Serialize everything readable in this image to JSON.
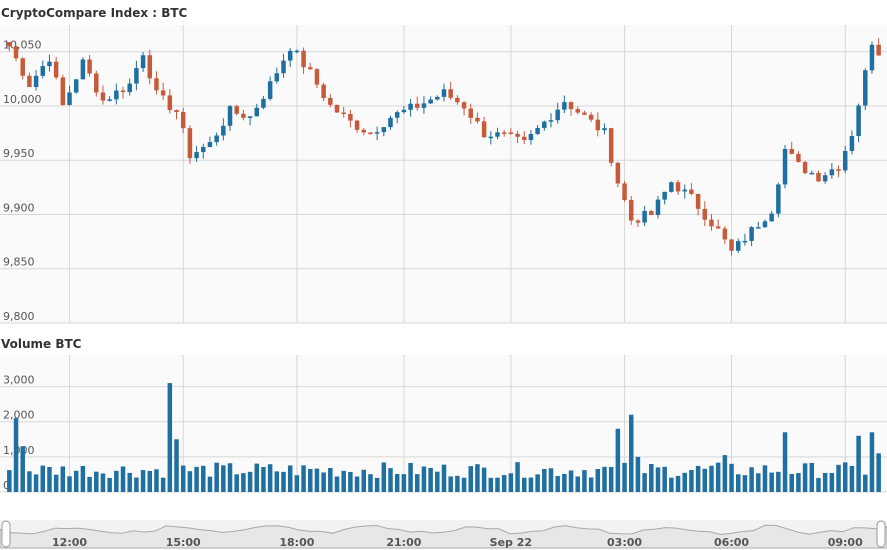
{
  "chart_data": [
    {
      "type": "candlestick",
      "title": "CryptoCompare Index : BTC",
      "y_ticks": [
        "10,050",
        "10,000",
        "9,950",
        "9,900",
        "9,850",
        "9,800"
      ],
      "y_tick_values": [
        10050,
        10000,
        9950,
        9900,
        9850,
        9800
      ],
      "ylim": [
        9800,
        10070
      ],
      "grid": true,
      "up_color": "#1f6fa0",
      "down_color": "#c85a3c",
      "key_points": [
        {
          "t": 0,
          "price": 10055
        },
        {
          "t": 3,
          "price": 10020
        },
        {
          "t": 6,
          "price": 10045
        },
        {
          "t": 8,
          "price": 10000
        },
        {
          "t": 11,
          "price": 10040
        },
        {
          "t": 14,
          "price": 10005
        },
        {
          "t": 18,
          "price": 10020
        },
        {
          "t": 20,
          "price": 10050
        },
        {
          "t": 22,
          "price": 10010
        },
        {
          "t": 25,
          "price": 9995
        },
        {
          "t": 27,
          "price": 9955
        },
        {
          "t": 30,
          "price": 9965
        },
        {
          "t": 33,
          "price": 9995
        },
        {
          "t": 36,
          "price": 9990
        },
        {
          "t": 39,
          "price": 10020
        },
        {
          "t": 42,
          "price": 10055
        },
        {
          "t": 45,
          "price": 10030
        },
        {
          "t": 48,
          "price": 10000
        },
        {
          "t": 51,
          "price": 9985
        },
        {
          "t": 54,
          "price": 9975
        },
        {
          "t": 57,
          "price": 9990
        },
        {
          "t": 61,
          "price": 10000
        },
        {
          "t": 65,
          "price": 10012
        },
        {
          "t": 68,
          "price": 10000
        },
        {
          "t": 71,
          "price": 9975
        },
        {
          "t": 74,
          "price": 9972
        },
        {
          "t": 77,
          "price": 9965
        },
        {
          "t": 80,
          "price": 9985
        },
        {
          "t": 83,
          "price": 10005
        },
        {
          "t": 86,
          "price": 9990
        },
        {
          "t": 89,
          "price": 9975
        },
        {
          "t": 91,
          "price": 9930
        },
        {
          "t": 93,
          "price": 9895
        },
        {
          "t": 96,
          "price": 9900
        },
        {
          "t": 99,
          "price": 9930
        },
        {
          "t": 102,
          "price": 9915
        },
        {
          "t": 104,
          "price": 9900
        },
        {
          "t": 106,
          "price": 9885
        },
        {
          "t": 108,
          "price": 9865
        },
        {
          "t": 111,
          "price": 9885
        },
        {
          "t": 114,
          "price": 9905
        },
        {
          "t": 116,
          "price": 9960
        },
        {
          "t": 118,
          "price": 9945
        },
        {
          "t": 121,
          "price": 9935
        },
        {
          "t": 124,
          "price": 9945
        },
        {
          "t": 126,
          "price": 9975
        },
        {
          "t": 128,
          "price": 10030
        },
        {
          "t": 129,
          "price": 10060
        },
        {
          "t": 130,
          "price": 10050
        }
      ],
      "candle_count": 131
    },
    {
      "type": "bar",
      "title": "Volume BTC",
      "y_ticks": [
        "3,000",
        "2,000",
        "1,000",
        "0"
      ],
      "y_tick_values": [
        3000,
        2000,
        1000,
        0
      ],
      "ylim": [
        0,
        3900
      ],
      "grid": true,
      "bar_color": "#1f6fa0",
      "base_volume": 400,
      "spikes": [
        {
          "t": 1,
          "value": 2100
        },
        {
          "t": 2,
          "value": 1300
        },
        {
          "t": 24,
          "value": 3100
        },
        {
          "t": 25,
          "value": 1500
        },
        {
          "t": 91,
          "value": 1800
        },
        {
          "t": 93,
          "value": 2200
        },
        {
          "t": 94,
          "value": 1000
        },
        {
          "t": 107,
          "value": 1050
        },
        {
          "t": 116,
          "value": 1700
        },
        {
          "t": 127,
          "value": 1600
        },
        {
          "t": 129,
          "value": 1700
        },
        {
          "t": 130,
          "value": 1100
        }
      ]
    }
  ],
  "x_axis": {
    "labels": [
      "12:00",
      "15:00",
      "18:00",
      "21:00",
      "Sep 22",
      "03:00",
      "06:00",
      "09:00"
    ],
    "label_t": [
      9,
      26,
      43,
      59,
      75,
      92,
      108,
      125
    ]
  },
  "navigator": {
    "fill": "#e7e7e7",
    "line": "#a8a8a8"
  }
}
